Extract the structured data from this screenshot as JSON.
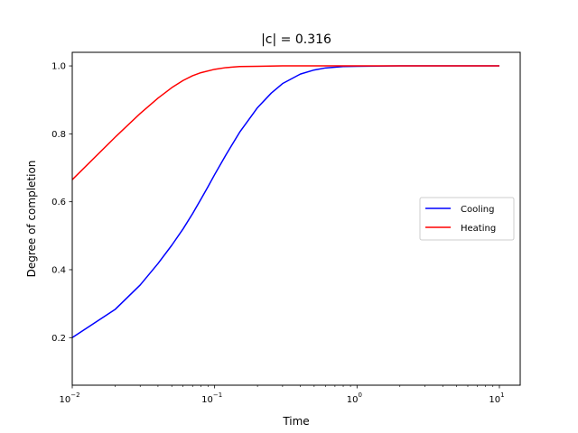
{
  "chart_data": {
    "type": "line",
    "title": "|c| = 0.316",
    "xlabel": "Time",
    "ylabel": "Degree of completion",
    "x_scale": "log",
    "xlim": [
      0.01,
      14
    ],
    "ylim": [
      0.06,
      1.04
    ],
    "x_ticks": [
      0.01,
      0.1,
      1,
      10
    ],
    "x_tick_labels": [
      [
        "10",
        "−2"
      ],
      [
        "10",
        "−1"
      ],
      [
        "10",
        "0"
      ],
      [
        "10",
        "1"
      ]
    ],
    "y_ticks": [
      0.2,
      0.4,
      0.6,
      0.8,
      1.0
    ],
    "y_tick_labels": [
      "0.2",
      "0.4",
      "0.6",
      "0.8",
      "1.0"
    ],
    "grid": false,
    "legend_position": "center-right",
    "series": [
      {
        "name": "Cooling",
        "color": "#0000ff",
        "x": [
          0.01,
          0.02,
          0.03,
          0.04,
          0.05,
          0.06,
          0.07,
          0.08,
          0.09,
          0.1,
          0.12,
          0.15,
          0.2,
          0.25,
          0.3,
          0.4,
          0.5,
          0.6,
          0.8,
          1.0,
          2.0,
          5.0,
          10.0
        ],
        "y": [
          0.2,
          0.283,
          0.355,
          0.418,
          0.472,
          0.52,
          0.565,
          0.607,
          0.645,
          0.68,
          0.738,
          0.805,
          0.877,
          0.92,
          0.948,
          0.976,
          0.988,
          0.994,
          0.998,
          0.999,
          1.0,
          1.0,
          1.0
        ]
      },
      {
        "name": "Heating",
        "color": "#ff0000",
        "x": [
          0.01,
          0.02,
          0.03,
          0.04,
          0.05,
          0.06,
          0.07,
          0.08,
          0.1,
          0.12,
          0.15,
          0.2,
          0.3,
          0.5,
          1.0,
          10.0
        ],
        "y": [
          0.665,
          0.79,
          0.86,
          0.905,
          0.936,
          0.957,
          0.971,
          0.98,
          0.99,
          0.995,
          0.998,
          0.999,
          1.0,
          1.0,
          1.0,
          1.0
        ]
      }
    ]
  }
}
